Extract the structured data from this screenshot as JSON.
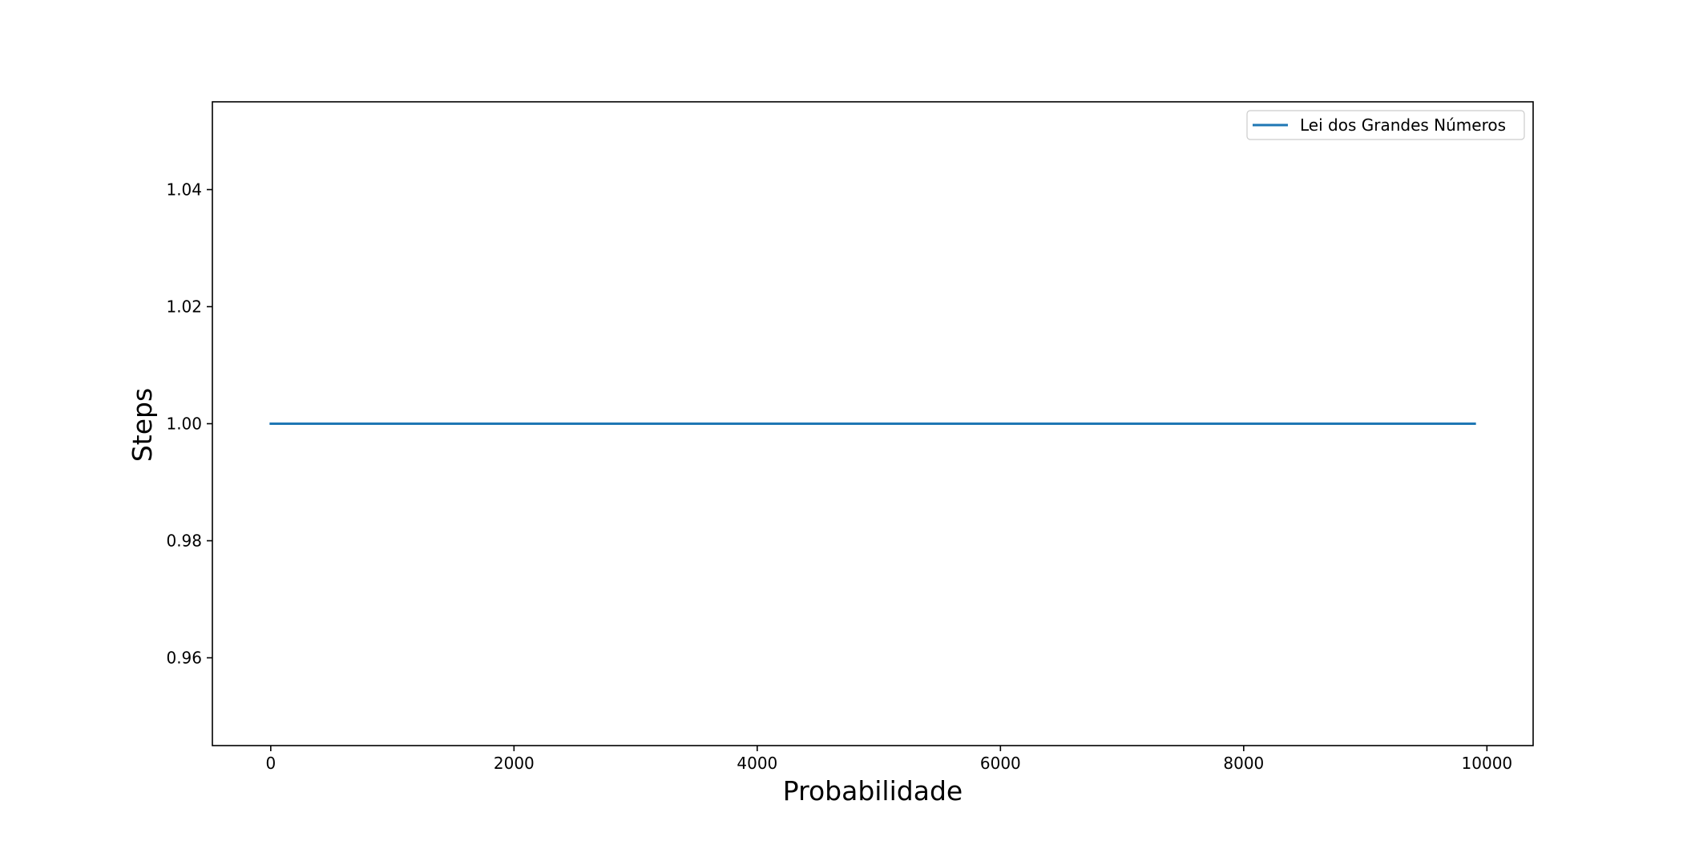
{
  "chart_data": {
    "type": "line",
    "title": "",
    "xlabel": "Probabilidade",
    "ylabel": "Steps",
    "xlim": [
      -480,
      10380
    ],
    "ylim": [
      0.945,
      1.055
    ],
    "x_ticks": [
      0,
      2000,
      4000,
      6000,
      8000,
      10000
    ],
    "x_tick_labels": [
      "0",
      "2000",
      "4000",
      "6000",
      "8000",
      "10000"
    ],
    "y_ticks": [
      0.96,
      0.98,
      1.0,
      1.02,
      1.04
    ],
    "y_tick_labels": [
      "0.96",
      "0.98",
      "1.00",
      "1.02",
      "1.04"
    ],
    "grid": false,
    "legend_position": "top-right",
    "series": [
      {
        "name": "Lei dos Grandes Números",
        "color": "#1f77b4",
        "x": [
          0,
          9900
        ],
        "y": [
          1.0,
          1.0
        ]
      }
    ]
  }
}
